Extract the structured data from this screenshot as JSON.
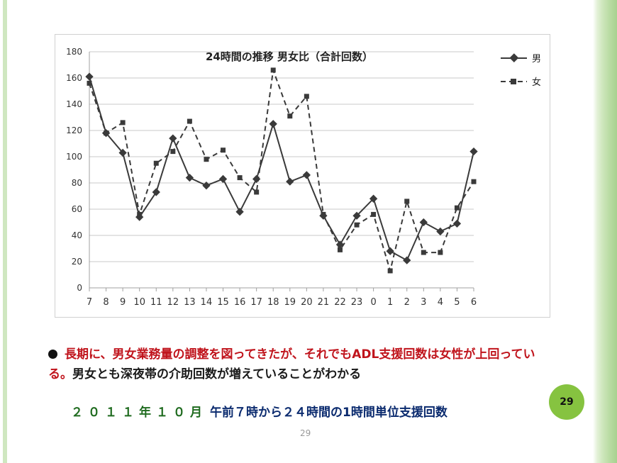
{
  "slide": {
    "note_red": "長期に、男女業務量の調整を図ってきたが、それでもADL支援回数は女性が上回っている。",
    "note_dark": "男女とも深夜帯の介助回数が増えていることがわかる",
    "caption_date": "２０１１年１０月",
    "caption_rest": "午前７時から２４時間の1時間単位支援回数",
    "page_badge": "29",
    "page_small": "29",
    "colors": {
      "accent_green": "#86c340",
      "red_text": "#c0141c",
      "caption_blue": "#0a2a6e",
      "caption_green": "#1f6b1f"
    }
  },
  "chart_data": {
    "type": "line",
    "title": "24時間の推移  男女比（合計回数）",
    "xlabel": "",
    "ylabel": "",
    "categories": [
      "7",
      "8",
      "9",
      "10",
      "11",
      "12",
      "13",
      "14",
      "15",
      "16",
      "17",
      "18",
      "19",
      "20",
      "21",
      "22",
      "23",
      "0",
      "1",
      "2",
      "3",
      "4",
      "5",
      "6"
    ],
    "series": [
      {
        "name": "男",
        "style": "solid",
        "marker": "diamond",
        "values": [
          161,
          118,
          103,
          54,
          73,
          114,
          84,
          78,
          83,
          58,
          83,
          125,
          81,
          86,
          55,
          33,
          55,
          68,
          28,
          21,
          50,
          43,
          49,
          104
        ]
      },
      {
        "name": "女",
        "style": "dashed",
        "marker": "square",
        "values": [
          156,
          118,
          126,
          56,
          95,
          104,
          127,
          98,
          105,
          84,
          73,
          166,
          131,
          146,
          56,
          29,
          48,
          56,
          13,
          66,
          27,
          27,
          61,
          81
        ]
      }
    ],
    "ylim": [
      0,
      180
    ],
    "yticks": [
      0,
      20,
      40,
      60,
      80,
      100,
      120,
      140,
      160,
      180
    ],
    "grid": true,
    "legend_position": "right",
    "color": "#3a3a3a"
  }
}
